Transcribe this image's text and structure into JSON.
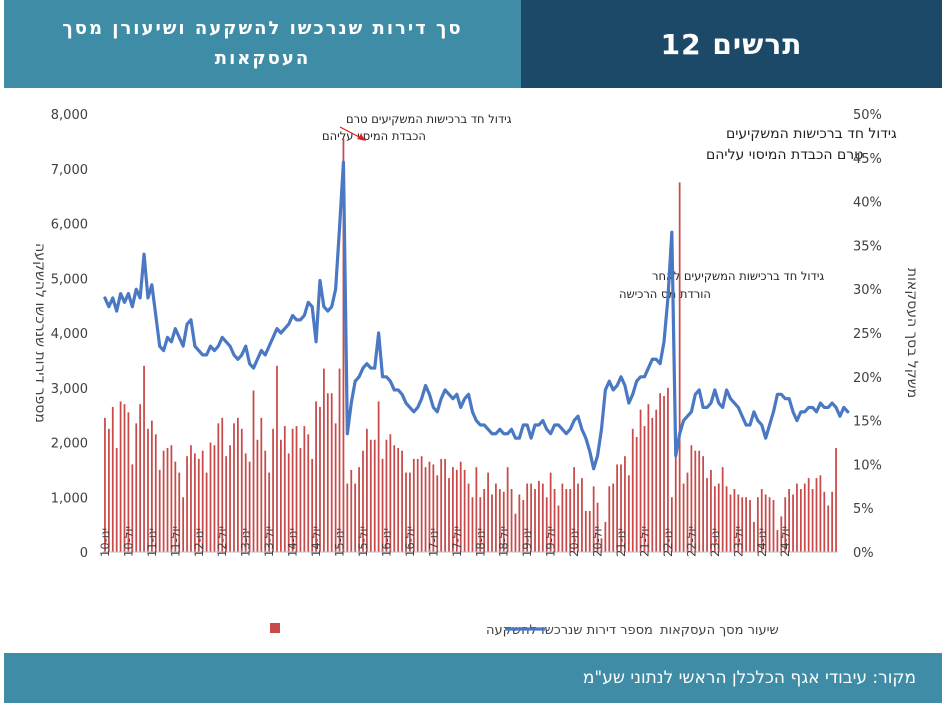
{
  "header": {
    "title_line1": "סך דירות שנרכשו להשקעה ושיעורן מסך",
    "title_line2": "העסקאות",
    "figure_label": "תרשים 12"
  },
  "footer": {
    "source": "מקור: עיבודי אגף הכלכלן הראשי לנתוני שע\"מ"
  },
  "colors": {
    "bars": "#c84a4a",
    "line": "#4a78c2",
    "header_dark": "#1d4968",
    "header_light": "#3f8ca6"
  },
  "chart_data": {
    "type": "bar+line",
    "left_axis": {
      "label": "מספר דירות שנרכשו להשקעה",
      "range": [
        0,
        8000
      ],
      "ticks": [
        "0",
        "1,000",
        "2,000",
        "3,000",
        "4,000",
        "5,000",
        "6,000",
        "7,000",
        "8,000"
      ]
    },
    "right_axis": {
      "label": "משקל בסך העסקאות",
      "range": [
        0,
        50
      ],
      "ticks": [
        "0%",
        "5%",
        "10%",
        "15%",
        "20%",
        "25%",
        "30%",
        "35%",
        "40%",
        "45%",
        "50%"
      ]
    },
    "x_ticks": [
      "ינו-10",
      "יול-10",
      "ינו-11",
      "יול-11",
      "ינו-12",
      "יול-12",
      "ינו-13",
      "יול-13",
      "ינו-14",
      "יול-14",
      "ינו-15",
      "יול-15",
      "ינו-16",
      "יול-16",
      "ינו-17",
      "יול-17",
      "ינו-18",
      "יול-18",
      "ינו-19",
      "יול-19",
      "ינו-20",
      "יול-20",
      "ינו-21",
      "יול-21",
      "ינו-22",
      "יול-22",
      "ינו-23",
      "יול-23",
      "ינו-24",
      "יול-24"
    ],
    "legend": {
      "bars": "מספר דירות שנרכשו להשקעה",
      "line": "שיעור מסך העסקאות"
    },
    "annotations": [
      {
        "text": [
          "גידול חד ברכישות המשקיעים טרם",
          "הכבדת המיסוי עליהם"
        ]
      },
      {
        "text": [
          "גידול חד ברכישות המשקיעים",
          "טרם הכבדת המיסוי עליהם"
        ]
      },
      {
        "text": [
          "גידול חד ברכישות המשקיעים לאחר",
          "הורדת מס הרכישה"
        ]
      }
    ],
    "series": [
      {
        "name": "מספר דירות שנרכשו להשקעה",
        "axis": "left",
        "values": [
          2450,
          2250,
          2650,
          1900,
          2750,
          2700,
          2550,
          1600,
          2350,
          2700,
          3400,
          2250,
          2400,
          2150,
          1500,
          1850,
          1900,
          1950,
          1650,
          1450,
          1000,
          1750,
          1950,
          1800,
          1700,
          1850,
          1450,
          2000,
          1950,
          2350,
          2450,
          1750,
          1950,
          2350,
          2450,
          2250,
          1800,
          1650,
          2950,
          2050,
          2450,
          1850,
          1450,
          2250,
          3400,
          2050,
          2300,
          1800,
          2250,
          2300,
          1900,
          2300,
          2150,
          1700,
          2750,
          2650,
          3350,
          2900,
          2900,
          2350,
          3350,
          7550,
          1250,
          1500,
          1250,
          1550,
          1850,
          2250,
          2050,
          2050,
          2750,
          1700,
          2050,
          2150,
          1950,
          1900,
          1850,
          1450,
          1450,
          1700,
          1700,
          1750,
          1550,
          1650,
          1600,
          1400,
          1700,
          1700,
          1350,
          1550,
          1500,
          1650,
          1500,
          1250,
          1000,
          1550,
          1000,
          1150,
          1450,
          1050,
          1250,
          1150,
          1100,
          1550,
          1150,
          700,
          1050,
          950,
          1250,
          1250,
          1150,
          1300,
          1250,
          1000,
          1450,
          1150,
          850,
          1250,
          1150,
          1150,
          1550,
          1250,
          1350,
          750,
          750,
          1200,
          900,
          250,
          550,
          1200,
          1250,
          1600,
          1600,
          1750,
          1400,
          2250,
          2100,
          2600,
          2300,
          2700,
          2450,
          2600,
          2900,
          2850,
          3000,
          1000,
          2000,
          6750,
          1250,
          1450,
          1950,
          1850,
          1850,
          1750,
          1350,
          1500,
          1200,
          1250,
          1550,
          1200,
          1050,
          1150,
          1050,
          1000,
          1000,
          950,
          550,
          1000,
          1150,
          1050,
          1000,
          950,
          400,
          650,
          1000,
          1150,
          1050,
          1250,
          1150,
          1250,
          1350,
          1150,
          1350,
          1400,
          1100,
          850,
          1100,
          1900
        ]
      },
      {
        "name": "שיעור מסך העסקאות",
        "axis": "right",
        "values": [
          29,
          28,
          29,
          27.5,
          29.5,
          28.5,
          29.5,
          28,
          30,
          29,
          34,
          29,
          30.5,
          27,
          23.5,
          23,
          24.5,
          24,
          25.5,
          24.5,
          23.5,
          26,
          26.5,
          23.5,
          23,
          22.5,
          22.5,
          23.5,
          23,
          23.5,
          24.5,
          24,
          23.5,
          22.5,
          22,
          22.5,
          23.5,
          21.5,
          21,
          22,
          23,
          22.5,
          23.5,
          24.5,
          25.5,
          25,
          25.5,
          26,
          27,
          26.5,
          26.5,
          27,
          28.5,
          28,
          24,
          31,
          28,
          27.5,
          28,
          30,
          37,
          44.5,
          13.5,
          17,
          19.5,
          20,
          21,
          21.5,
          21,
          21,
          25,
          20,
          20,
          19.5,
          18.5,
          18.5,
          18,
          17,
          16.5,
          16,
          16.5,
          17.5,
          19,
          18,
          16.5,
          16,
          17.5,
          18.5,
          18,
          17.5,
          18,
          16.5,
          17.5,
          18,
          16,
          15,
          14.5,
          14.5,
          14,
          13.5,
          13.5,
          14,
          13.5,
          13.5,
          14,
          13,
          13,
          14.5,
          14.5,
          13,
          14.5,
          14.5,
          15,
          14,
          13.5,
          14.5,
          14.5,
          14,
          13.5,
          14,
          15,
          15.5,
          14,
          13,
          11.5,
          9.5,
          11,
          14,
          18.5,
          19.5,
          18.5,
          19,
          20,
          19,
          17,
          18,
          19.5,
          20,
          20,
          21,
          22,
          22,
          21.5,
          24,
          29,
          36.5,
          11,
          13.5,
          15,
          15.5,
          16,
          18,
          18.5,
          16.5,
          16.5,
          17,
          18.5,
          17,
          16.5,
          18.5,
          17.5,
          17,
          16.5,
          15.5,
          14.5,
          14.5,
          16,
          15,
          14.5,
          13,
          14.5,
          16,
          18,
          18,
          17.5,
          17.5,
          16,
          15,
          16,
          16,
          16.5,
          16.5,
          16,
          17,
          16.5,
          16.5,
          17,
          16.5,
          15.5,
          16.5,
          16
        ]
      }
    ]
  }
}
